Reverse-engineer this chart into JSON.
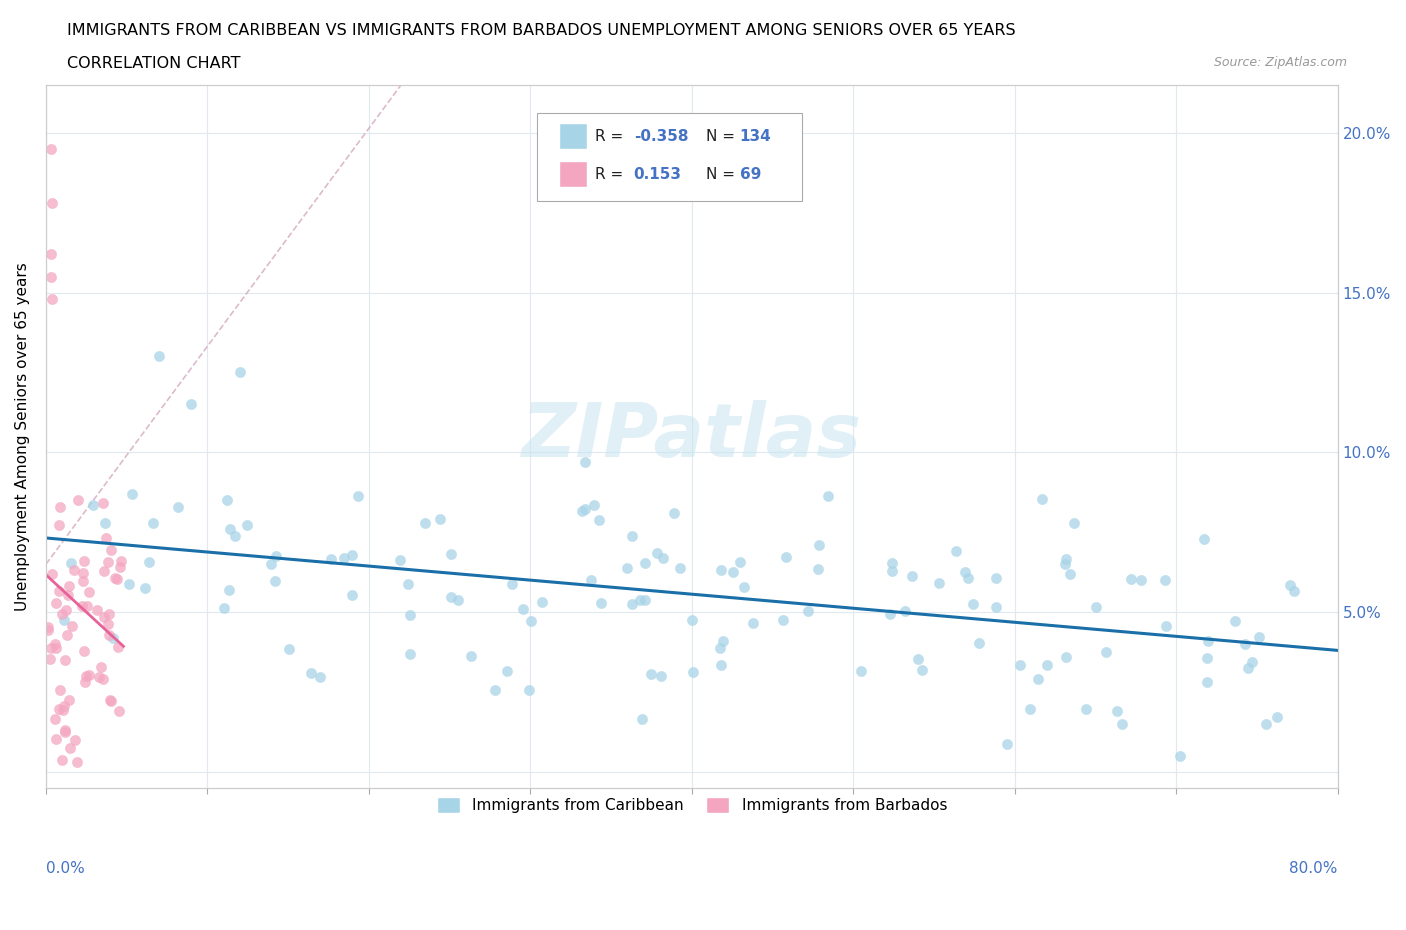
{
  "title_line1": "IMMIGRANTS FROM CARIBBEAN VS IMMIGRANTS FROM BARBADOS UNEMPLOYMENT AMONG SENIORS OVER 65 YEARS",
  "title_line2": "CORRELATION CHART",
  "source": "Source: ZipAtlas.com",
  "ylabel": "Unemployment Among Seniors over 65 years",
  "caribbean_R": -0.358,
  "caribbean_N": 134,
  "barbados_R": 0.153,
  "barbados_N": 69,
  "caribbean_color": "#a8d4e8",
  "barbados_color": "#f4a6c0",
  "caribbean_line_color": "#1a6fa8",
  "barbados_line_color": "#e8629a",
  "legend_label_caribbean": "Immigrants from Caribbean",
  "legend_label_barbados": "Immigrants from Barbados",
  "xlim": [
    0.0,
    0.8
  ],
  "ylim": [
    -0.005,
    0.215
  ],
  "background_color": "#ffffff",
  "watermark": "ZIPatlas",
  "grid_color": "#e0e8f0",
  "ref_line_color": "#d4a8c0"
}
